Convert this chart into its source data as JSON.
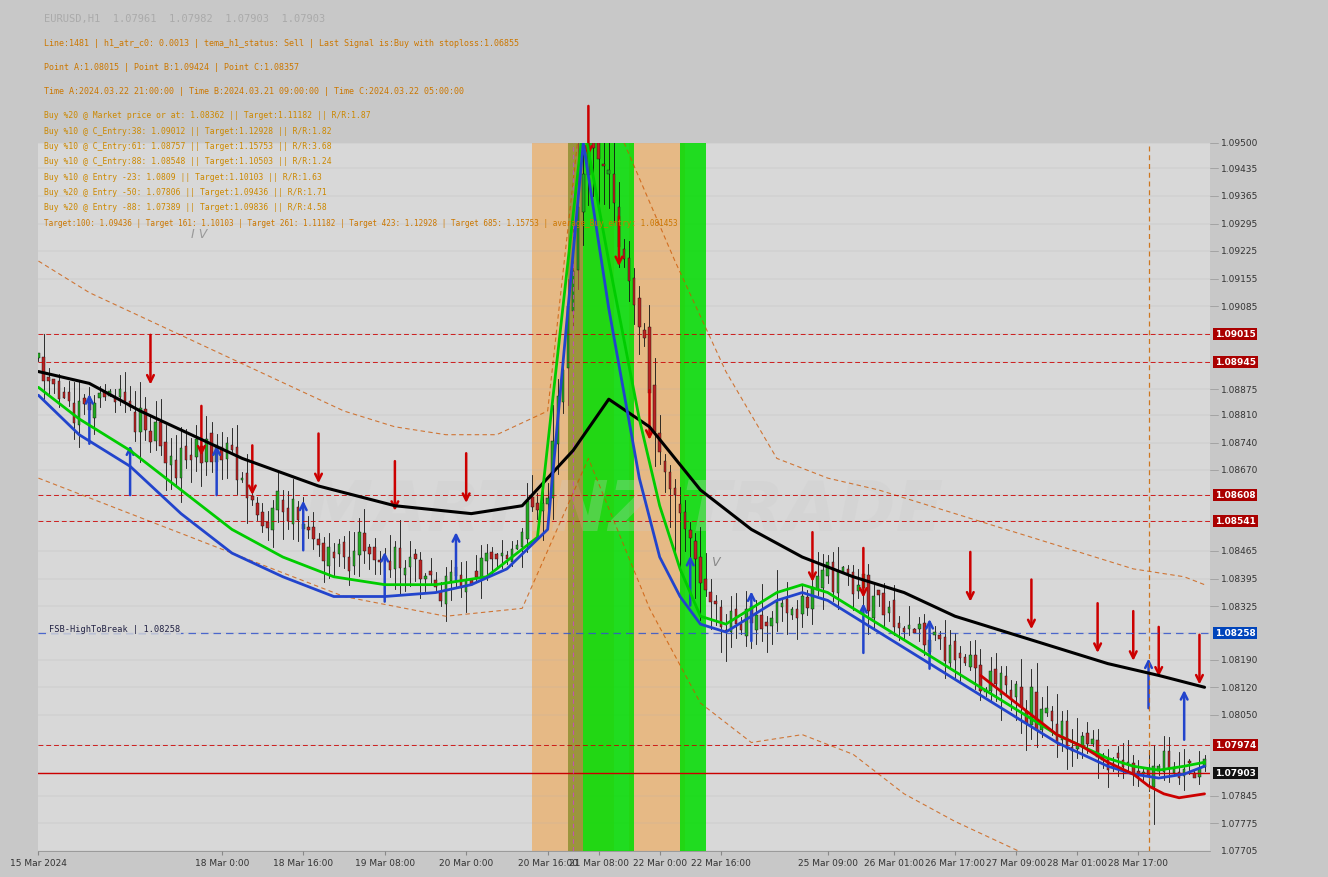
{
  "title": "EURUSD,H1  1.07961  1.07982  1.07903  1.07903",
  "line1": "Line:1481 | h1_atr_c0: 0.0013 | tema_h1_status: Sell | Last Signal is:Buy with stoploss:1.06855",
  "line2": "Point A:1.08015 | Point B:1.09424 | Point C:1.08357",
  "line3": "Time A:2024.03.22 21:00:00 | Time B:2024.03.21 09:00:00 | Time C:2024.03.22 05:00:00",
  "line4": "Buy %20 @ Market price or at: 1.08362 || Target:1.11182 || R/R:1.87",
  "line5": "Buy %10 @ C_Entry:38: 1.09012 || Target:1.12928 || R/R:1.82",
  "line6": "Buy %10 @ C_Entry:61: 1.08757 || Target:1.15753 || R/R:3.68",
  "line7": "Buy %10 @ C_Entry:88: 1.08548 || Target:1.10503 || R/R:1.24",
  "line8": "Buy %10 @ Entry -23: 1.0809 || Target:1.10103 || R/R:1.63",
  "line9": "Buy %20 @ Entry -50: 1.07806 || Target:1.09436 || R/R:1.71",
  "line10": "Buy %20 @ Entry -88: 1.07389 || Target:1.09836 || R/R:4.58",
  "line11": "Target:100: 1.09436 | Target 161: 1.10103 | Target 261: 1.11182 | Target 423: 1.12928 | Target 685: 1.15753 | average_Buy_entry: 1.081453",
  "y_min": 1.07705,
  "y_max": 1.095,
  "price_labels": [
    1.095,
    1.09435,
    1.09365,
    1.09295,
    1.09225,
    1.09155,
    1.09085,
    1.09015,
    1.08945,
    1.08875,
    1.0881,
    1.0874,
    1.0867,
    1.08608,
    1.08541,
    1.08465,
    1.08395,
    1.08325,
    1.08258,
    1.0819,
    1.0812,
    1.0805,
    1.07974,
    1.07903,
    1.07845,
    1.07775,
    1.07705
  ],
  "hline_red_dashed": [
    1.09015,
    1.08945,
    1.08608,
    1.08541,
    1.07974
  ],
  "hline_blue_dashed": [
    1.08258
  ],
  "hline_red_solid": [
    1.07903
  ],
  "label_red_bg": [
    1.09015,
    1.08945,
    1.08608,
    1.08541,
    1.07974
  ],
  "label_blue_bg": [
    1.08258
  ],
  "label_black_bg": [
    1.07903
  ],
  "fsb_label": "FSB-HighToBreak | 1.08258",
  "x_labels": [
    "15 Mar 2024",
    "18 Mar 0:00",
    "18 Mar 16:00",
    "19 Mar 08:00",
    "20 Mar 0:00",
    "20 Mar 16:00",
    "21 Mar 08:00",
    "22 Mar 0:00",
    "22 Mar 16:00",
    "25 Mar 09:00",
    "26 Mar 01:00",
    "26 Mar 17:00",
    "27 Mar 09:00",
    "28 Mar 01:00",
    "28 Mar 17:00"
  ],
  "x_tick_bars": [
    0,
    36,
    52,
    68,
    84,
    100,
    110,
    122,
    134,
    155,
    168,
    180,
    192,
    204,
    216
  ],
  "n_bars": 230,
  "bg_outer": "#c8c8c8",
  "bg_chart": "#d8d8d8",
  "watermark": "MARTINZ TRADE",
  "tema_black": "#000000",
  "tema_green": "#00cc00",
  "tema_blue": "#2244cc",
  "tema_red": "#cc0000"
}
